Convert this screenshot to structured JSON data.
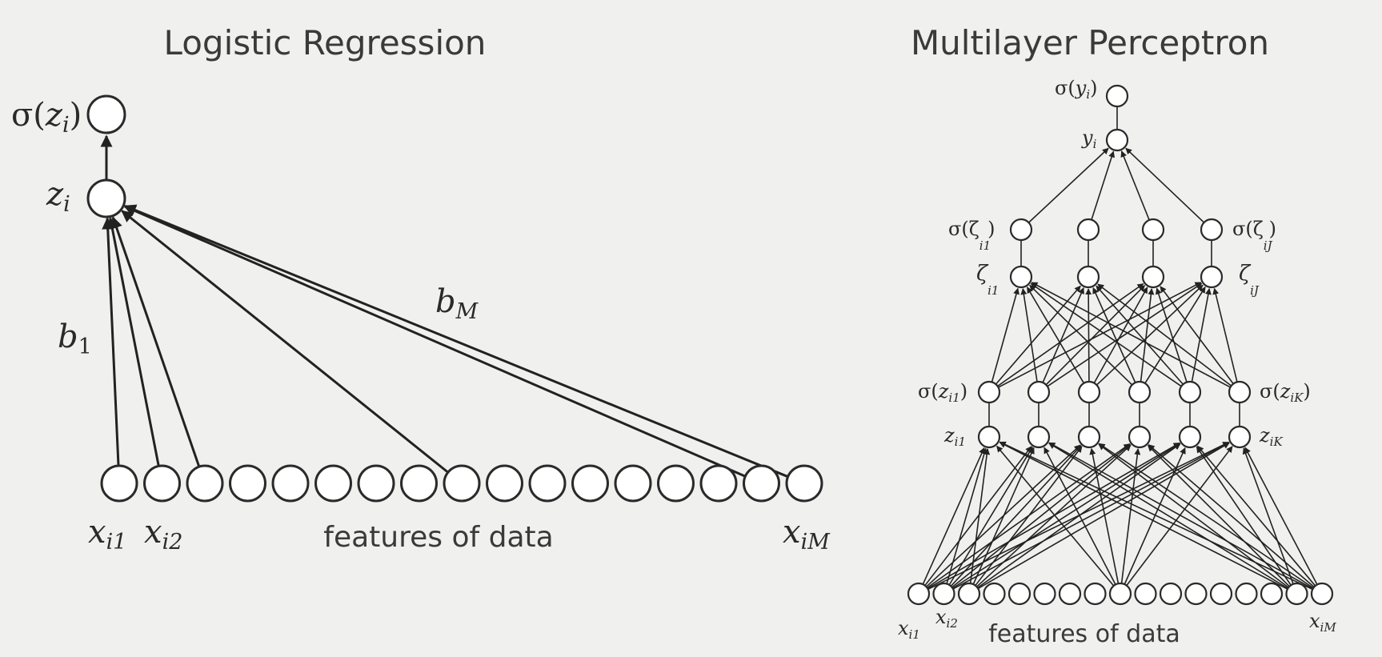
{
  "left": {
    "title": "Logistic Regression",
    "caption": "features of data",
    "labels": {
      "sigma": "σ(",
      "sigma_var": "z",
      "sigma_sub": "i",
      "sigma_close": ")",
      "z": "z",
      "z_sub": "i",
      "b1": "b",
      "b1_sub": "1",
      "bM": "b",
      "bM_sub": "M",
      "x1": "x",
      "x1_sub": "i1",
      "x2": "x",
      "x2_sub": "i2",
      "xM": "x",
      "xM_sub": "iM"
    }
  },
  "right": {
    "title": "Multilayer Perceptron",
    "caption": "features of data",
    "labels": {
      "sigma_y": "σ(",
      "sigma_y_var": "y",
      "sigma_y_sub": "i",
      "sigma_y_close": ")",
      "y": "y",
      "y_sub": "i",
      "sig_zeta1": "σ(ζ",
      "sig_zeta1_sub": "i1",
      "sig_zetaJ": "σ(ζ",
      "sig_zetaJ_sub": "iJ",
      "close_paren": ")",
      "zeta1": "ζ",
      "zeta1_sub": "i1",
      "zetaJ": "ζ",
      "zetaJ_sub": "iJ",
      "sig_z1": "σ(",
      "sig_z1_var": "z",
      "sig_z1_sub": "i1",
      "sig_zK": "σ(",
      "sig_zK_var": "z",
      "sig_zK_sub": "iK",
      "z1": "z",
      "z1_sub": "i1",
      "zK": "z",
      "zK_sub": "iK",
      "x1": "x",
      "x1_sub": "i1",
      "x2": "x",
      "x2_sub": "i2",
      "xM": "x",
      "xM_sub": "iM"
    }
  }
}
